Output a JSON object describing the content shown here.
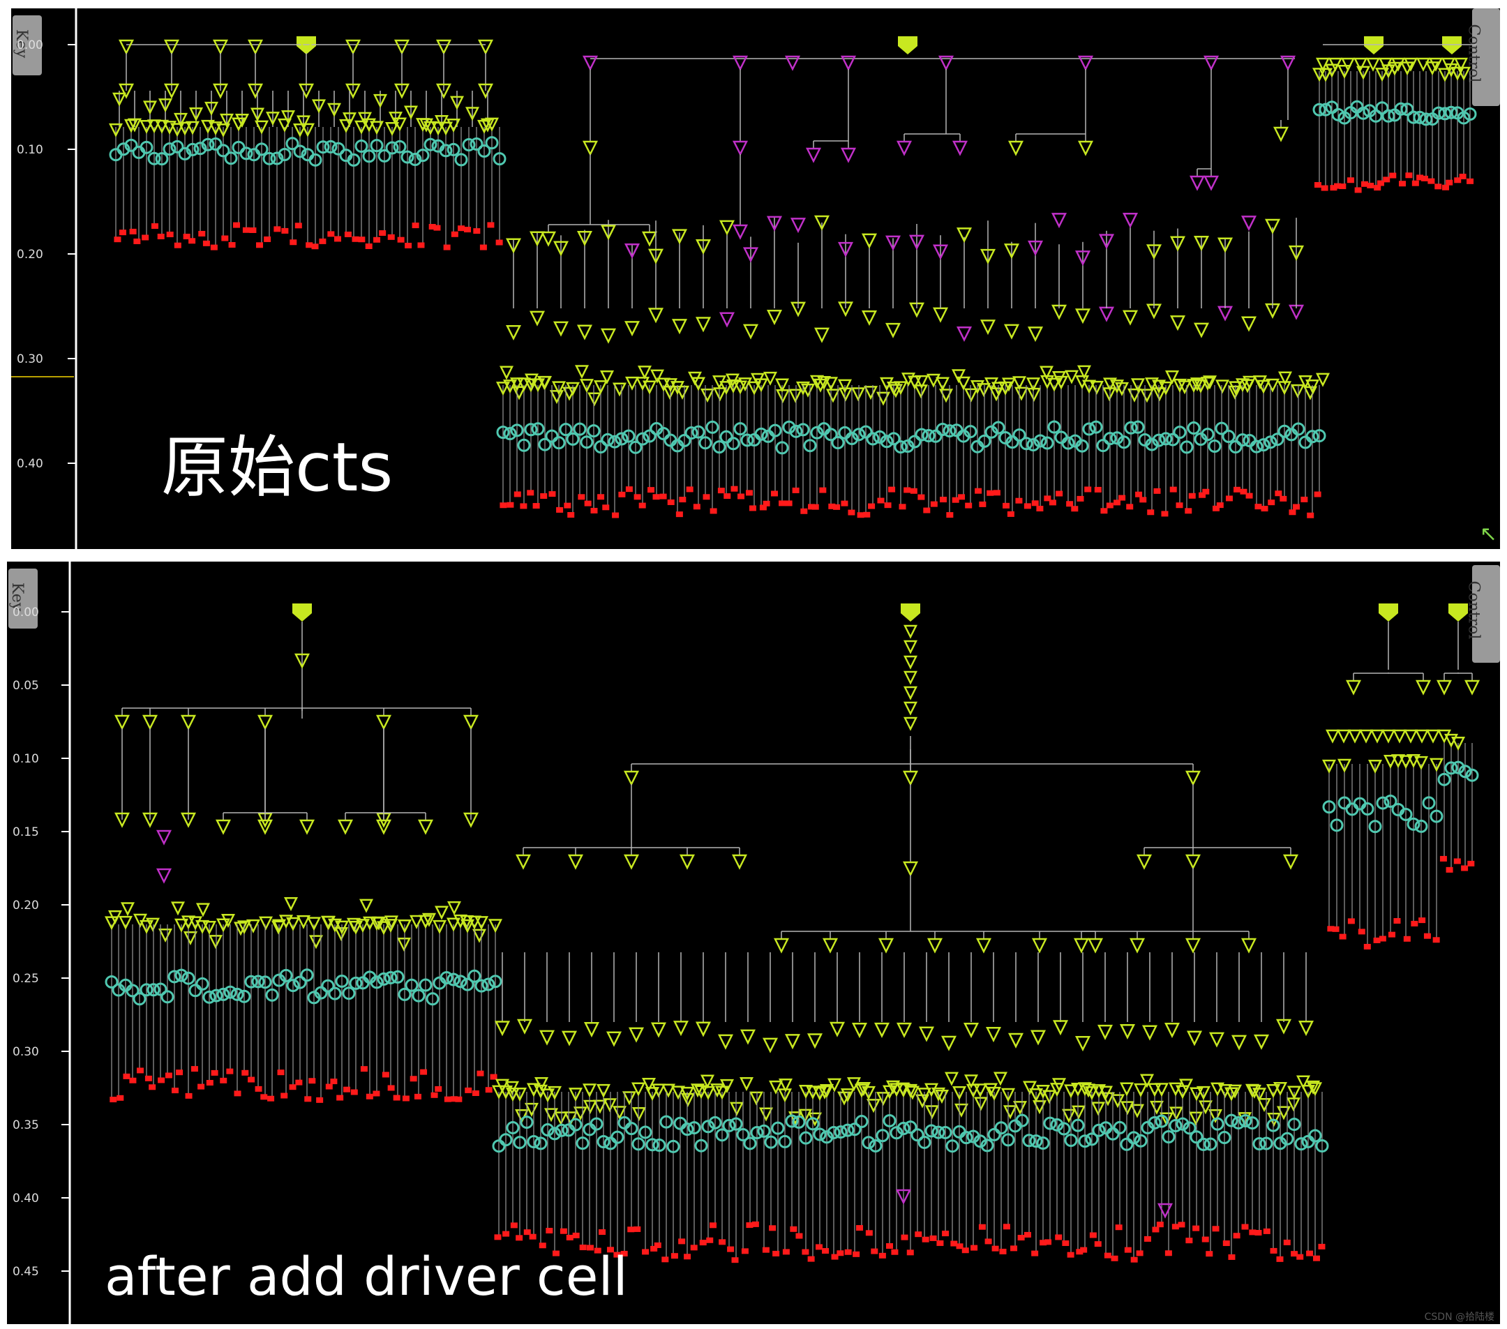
{
  "panels": [
    {
      "id": "top",
      "caption": "原始cts",
      "key_tab": "Key",
      "control_tab": "Control",
      "axis_ticks": [
        "0.00",
        "0.10",
        "0.20",
        "0.30",
        "0.40"
      ]
    },
    {
      "id": "bottom",
      "caption": "after add driver cell",
      "key_tab": "Key",
      "control_tab": "Control",
      "axis_ticks": [
        "0.00",
        "0.05",
        "0.10",
        "0.15",
        "0.20",
        "0.25",
        "0.30",
        "0.35",
        "0.40",
        "0.45"
      ]
    }
  ],
  "watermark": "CSDN @拾陆楼",
  "colors": {
    "buffer": "#c8e820",
    "inverter": "#c030c8",
    "clock_pin": "#4fc8b0",
    "sink": "#ff1a1a",
    "stem": "#9a9a9a",
    "axis": "#ffffff"
  },
  "icons": {
    "corner": "resize-arrow-icon"
  }
}
